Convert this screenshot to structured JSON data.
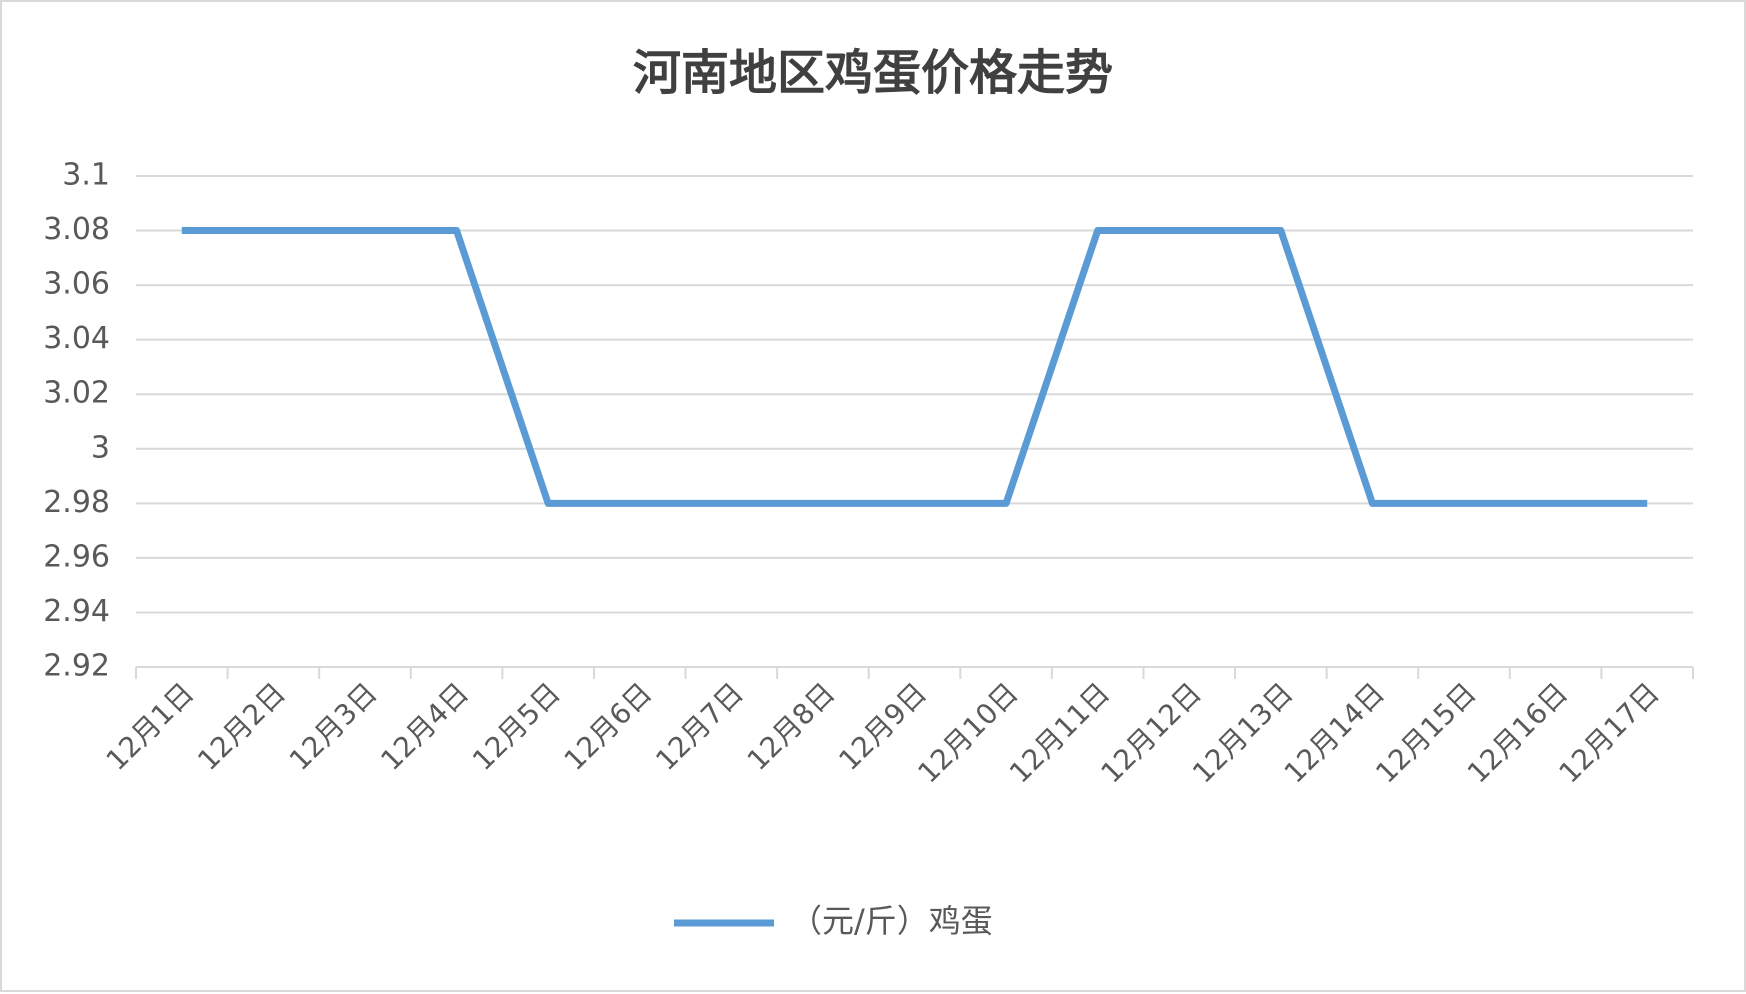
{
  "chart_data": {
    "type": "line",
    "title": "河南地区鸡蛋价格走势",
    "categories": [
      "12月1日",
      "12月2日",
      "12月3日",
      "12月4日",
      "12月5日",
      "12月6日",
      "12月7日",
      "12月8日",
      "12月9日",
      "12月10日",
      "12月11日",
      "12月12日",
      "12月13日",
      "12月14日",
      "12月15日",
      "12月16日",
      "12月17日"
    ],
    "series": [
      {
        "name": "（元/斤）鸡蛋",
        "color": "#5b9bd5",
        "values": [
          3.08,
          3.08,
          3.08,
          3.08,
          2.98,
          2.98,
          2.98,
          2.98,
          2.98,
          2.98,
          3.08,
          3.08,
          3.08,
          2.98,
          2.98,
          2.98,
          2.98
        ]
      }
    ],
    "ylim": [
      2.92,
      3.1
    ],
    "yticks": [
      2.92,
      2.94,
      2.96,
      2.98,
      3,
      3.02,
      3.04,
      3.06,
      3.08,
      3.1
    ],
    "grid": true,
    "legend": "bottom"
  }
}
